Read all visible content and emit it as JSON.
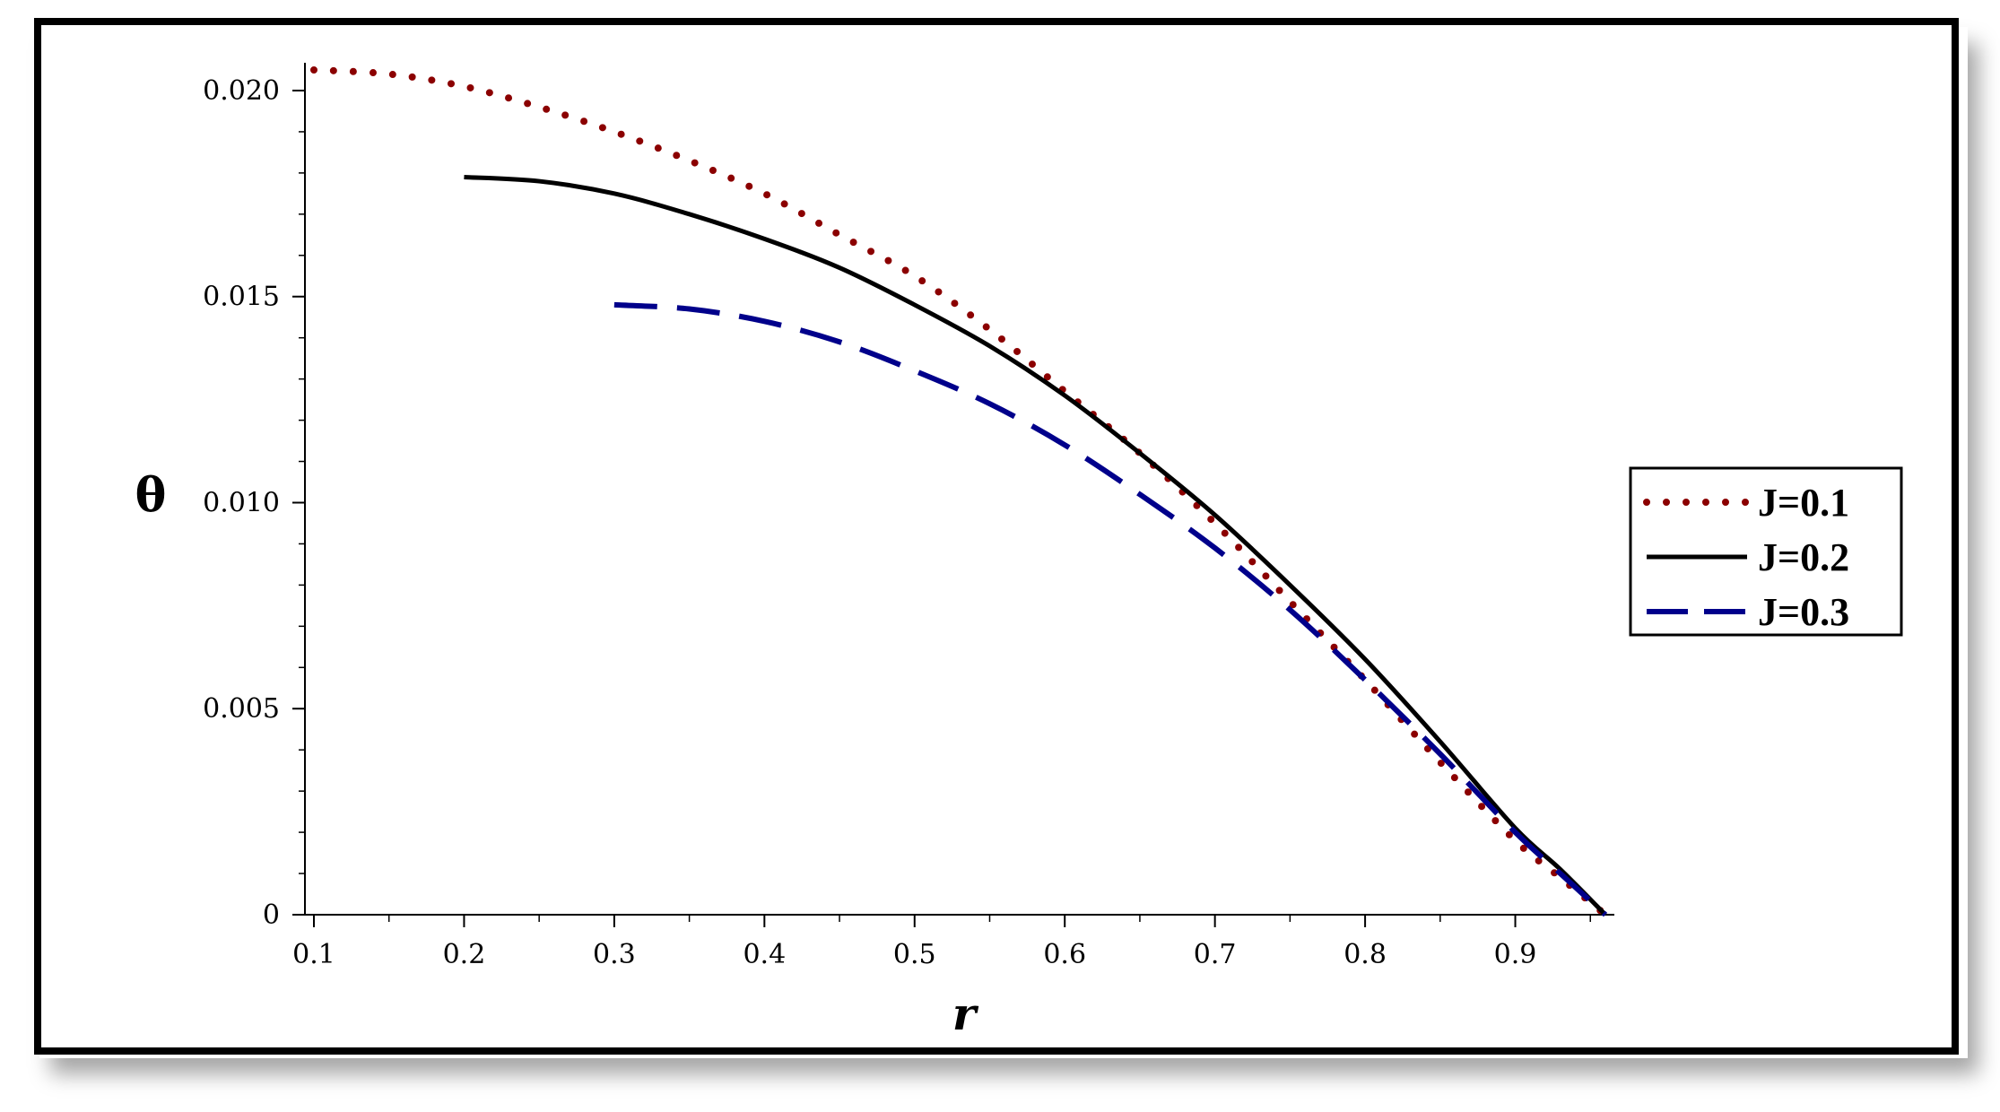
{
  "chart_data": {
    "type": "line",
    "xlabel": "r",
    "ylabel": "θ",
    "xlim": [
      0.1,
      0.96
    ],
    "ylim": [
      0,
      0.0205
    ],
    "x_ticks": [
      "0.1",
      "0.2",
      "0.3",
      "0.4",
      "0.5",
      "0.6",
      "0.7",
      "0.8",
      "0.9"
    ],
    "y_ticks": [
      "0",
      "0.005",
      "0.010",
      "0.015",
      "0.020"
    ],
    "legend_position": "right",
    "grid": false,
    "series": [
      {
        "name": "J=0.1",
        "style": "dotted",
        "color": "#8B0000",
        "x": [
          0.1,
          0.15,
          0.2,
          0.25,
          0.3,
          0.35,
          0.4,
          0.45,
          0.5,
          0.55,
          0.6,
          0.65,
          0.7,
          0.75,
          0.8,
          0.85,
          0.9,
          0.93,
          0.96
        ],
        "y": [
          0.0205,
          0.0204,
          0.0201,
          0.0196,
          0.019,
          0.0183,
          0.0175,
          0.0165,
          0.0155,
          0.0142,
          0.0127,
          0.0112,
          0.0095,
          0.0076,
          0.0057,
          0.0037,
          0.0018,
          0.0009,
          0.0
        ]
      },
      {
        "name": "J=0.2",
        "style": "solid",
        "color": "#000000",
        "x": [
          0.2,
          0.25,
          0.3,
          0.35,
          0.4,
          0.45,
          0.5,
          0.55,
          0.6,
          0.65,
          0.7,
          0.75,
          0.8,
          0.85,
          0.9,
          0.93,
          0.96
        ],
        "y": [
          0.0179,
          0.0178,
          0.0175,
          0.017,
          0.0164,
          0.0157,
          0.0148,
          0.0138,
          0.0126,
          0.0112,
          0.0097,
          0.008,
          0.0062,
          0.0042,
          0.0021,
          0.0011,
          0.0
        ]
      },
      {
        "name": "J=0.3",
        "style": "dashed",
        "color": "#00008B",
        "x": [
          0.3,
          0.35,
          0.4,
          0.45,
          0.5,
          0.55,
          0.6,
          0.65,
          0.7,
          0.75,
          0.8,
          0.85,
          0.9,
          0.93,
          0.96
        ],
        "y": [
          0.0148,
          0.0147,
          0.0144,
          0.0139,
          0.0132,
          0.0124,
          0.0114,
          0.0102,
          0.0089,
          0.0074,
          0.0057,
          0.0039,
          0.002,
          0.001,
          0.0
        ]
      }
    ]
  }
}
